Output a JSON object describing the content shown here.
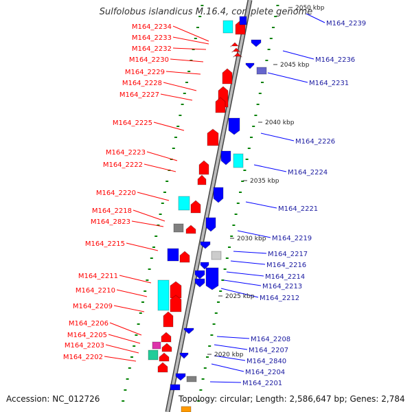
{
  "title": "Sulfolobus islandicus M.16.4, complete genome",
  "accession": "Accession: NC_012726",
  "topology": "Topology: circular; Length: 2,586,647 bp; Genes: 2,784",
  "colors": {
    "forward": "#ff0000",
    "reverse": "#0000ff",
    "cyan": "#00ffff",
    "gray": "#808080",
    "backbone": "#999999",
    "tick": "#008000"
  },
  "kbp_labels": [
    "2050 kbp",
    "2045 kbp",
    "2040 kbp",
    "2035 kbp",
    "2030 kbp",
    "2025 kbp",
    "2020 kbp"
  ],
  "left_genes": [
    "M164_2234",
    "M164_2233",
    "M164_2232",
    "M164_2230",
    "M164_2229",
    "M164_2228",
    "M164_2227",
    "M164_2225",
    "M164_2223",
    "M164_2222",
    "M164_2220",
    "M164_2218",
    "M164_2823",
    "M164_2215",
    "M164_2211",
    "M164_2210",
    "M164_2209",
    "M164_2206",
    "M164_2205",
    "M164_2203",
    "M164_2202"
  ],
  "right_genes": [
    "M164_2239",
    "M164_2236",
    "M164_2231",
    "M164_2226",
    "M164_2224",
    "M164_2221",
    "M164_2219",
    "M164_2217",
    "M164_2216",
    "M164_2214",
    "M164_2213",
    "M164_2212",
    "M164_2208",
    "M164_2207",
    "M164_2840",
    "M164_2204",
    "M164_2201"
  ]
}
